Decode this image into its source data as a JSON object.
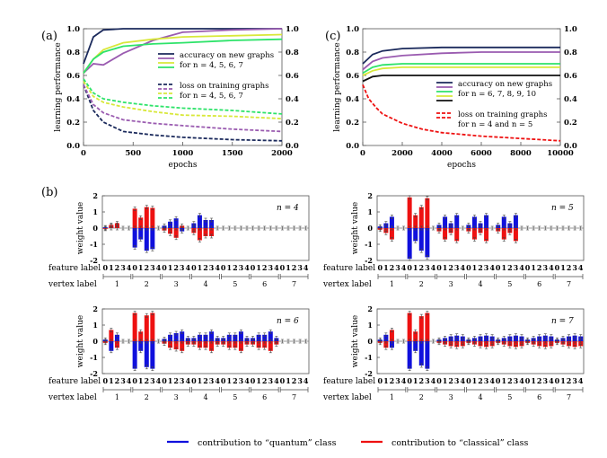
{
  "figure": {
    "panel_a_label": "(a)",
    "panel_b_label": "(b)",
    "panel_c_label": "(c)",
    "bottom_legend": {
      "quantum_label": "contribution to “quantum” class",
      "classical_label": "contribution to “classical” class",
      "quantum_color": "#1010dd",
      "classical_color": "#ee1111"
    }
  },
  "chart_data": [
    {
      "id": "a",
      "type": "line",
      "xlabel": "epochs",
      "ylabel": "learning performance",
      "xlim": [
        0,
        2000
      ],
      "ylim": [
        0,
        1.0
      ],
      "xticks": [
        "0",
        "500",
        "1000",
        "1500",
        "2000"
      ],
      "yticks": [
        "0.0",
        "0.2",
        "0.4",
        "0.6",
        "0.8",
        "1.0"
      ],
      "right_axis_ticks": [
        "0.0",
        "0.2",
        "0.4",
        "0.6",
        "0.8",
        "1.0"
      ],
      "grid": false,
      "legend": {
        "accuracy_lines": [
          "accuracy on new graphs",
          "for n = 4, 5, 6, 7"
        ],
        "loss_lines": [
          "loss on training graphs",
          "for n = 4, 5, 6, 7"
        ]
      },
      "colors": [
        "#1b2a5c",
        "#9a5bb0",
        "#d8e83a",
        "#2ee36a"
      ],
      "series": [
        {
          "kind": "accuracy",
          "x": [
            0,
            100,
            200,
            400,
            700,
            1000,
            1500,
            2000
          ],
          "y": [
            0.7,
            0.93,
            0.99,
            1.0,
            1.0,
            1.0,
            1.0,
            1.0
          ]
        },
        {
          "kind": "accuracy",
          "x": [
            0,
            100,
            200,
            400,
            700,
            1000,
            1500,
            2000
          ],
          "y": [
            0.62,
            0.7,
            0.69,
            0.79,
            0.9,
            0.97,
            0.99,
            1.0
          ]
        },
        {
          "kind": "accuracy",
          "x": [
            0,
            100,
            200,
            400,
            700,
            1000,
            1500,
            2000
          ],
          "y": [
            0.62,
            0.74,
            0.82,
            0.88,
            0.91,
            0.93,
            0.94,
            0.95
          ]
        },
        {
          "kind": "accuracy",
          "x": [
            0,
            100,
            200,
            400,
            700,
            1000,
            1500,
            2000
          ],
          "y": [
            0.62,
            0.74,
            0.8,
            0.85,
            0.87,
            0.88,
            0.9,
            0.91
          ]
        },
        {
          "kind": "loss",
          "x": [
            0,
            100,
            200,
            400,
            700,
            1000,
            1500,
            2000
          ],
          "y": [
            0.52,
            0.3,
            0.2,
            0.12,
            0.09,
            0.07,
            0.05,
            0.04
          ]
        },
        {
          "kind": "loss",
          "x": [
            0,
            100,
            200,
            400,
            700,
            1000,
            1500,
            2000
          ],
          "y": [
            0.52,
            0.35,
            0.28,
            0.22,
            0.19,
            0.17,
            0.14,
            0.12
          ]
        },
        {
          "kind": "loss",
          "x": [
            0,
            100,
            200,
            400,
            700,
            1000,
            1500,
            2000
          ],
          "y": [
            0.55,
            0.42,
            0.37,
            0.33,
            0.29,
            0.26,
            0.25,
            0.23
          ]
        },
        {
          "kind": "loss",
          "x": [
            0,
            100,
            200,
            400,
            700,
            1000,
            1500,
            2000
          ],
          "y": [
            0.57,
            0.45,
            0.4,
            0.37,
            0.34,
            0.32,
            0.3,
            0.27
          ]
        }
      ]
    },
    {
      "id": "c",
      "type": "line",
      "xlabel": "epochs",
      "ylabel": "learning performance",
      "xlim": [
        0,
        10000
      ],
      "ylim": [
        0,
        1.0
      ],
      "xticks": [
        "0",
        "2000",
        "4000",
        "6000",
        "8000",
        "10000"
      ],
      "yticks": [
        "0.0",
        "0.2",
        "0.4",
        "0.6",
        "0.8",
        "1.0"
      ],
      "right_axis_ticks": [
        "0.0",
        "0.2",
        "0.4",
        "0.6",
        "0.8",
        "1.0"
      ],
      "grid": false,
      "legend": {
        "accuracy_lines": [
          "accuracy on new graphs",
          "for n = 6, 7, 8, 9, 10"
        ],
        "loss_lines": [
          "loss on training graphs",
          "for n = 4 and n = 5"
        ]
      },
      "colors": [
        "#1b2a5c",
        "#9a5bb0",
        "#2ee36a",
        "#d8e83a",
        "#111111"
      ],
      "loss_color": "#ee1111",
      "series": [
        {
          "kind": "accuracy",
          "x": [
            0,
            500,
            1000,
            2000,
            4000,
            6000,
            8000,
            10000
          ],
          "y": [
            0.7,
            0.78,
            0.81,
            0.83,
            0.84,
            0.84,
            0.84,
            0.84
          ]
        },
        {
          "kind": "accuracy",
          "x": [
            0,
            500,
            1000,
            2000,
            4000,
            6000,
            8000,
            10000
          ],
          "y": [
            0.65,
            0.72,
            0.75,
            0.77,
            0.79,
            0.8,
            0.8,
            0.8
          ]
        },
        {
          "kind": "accuracy",
          "x": [
            0,
            500,
            1000,
            2000,
            4000,
            6000,
            8000,
            10000
          ],
          "y": [
            0.62,
            0.67,
            0.69,
            0.7,
            0.7,
            0.7,
            0.7,
            0.7
          ]
        },
        {
          "kind": "accuracy",
          "x": [
            0,
            500,
            1000,
            2000,
            4000,
            6000,
            8000,
            10000
          ],
          "y": [
            0.6,
            0.64,
            0.66,
            0.67,
            0.67,
            0.67,
            0.67,
            0.67
          ]
        },
        {
          "kind": "accuracy",
          "x": [
            0,
            500,
            1000,
            2000,
            4000,
            6000,
            8000,
            10000
          ],
          "y": [
            0.55,
            0.59,
            0.6,
            0.6,
            0.6,
            0.6,
            0.6,
            0.6
          ]
        },
        {
          "kind": "loss",
          "x": [
            0,
            300,
            700,
            1000,
            2000,
            3000,
            4000,
            6000,
            8000,
            10000
          ],
          "y": [
            0.52,
            0.4,
            0.32,
            0.27,
            0.19,
            0.14,
            0.11,
            0.08,
            0.06,
            0.04
          ]
        }
      ]
    },
    {
      "id": "b",
      "type": "bar",
      "ylabel": "weight value",
      "ylim": [
        -2,
        2
      ],
      "yticks": [
        "2",
        "1",
        "0",
        "-1",
        "-2"
      ],
      "feature_axis_label": "feature label",
      "vertex_axis_label": "vertex label",
      "feature_labels": [
        "0",
        "1",
        "2",
        "3",
        "4"
      ],
      "vertex_labels": [
        "1",
        "2",
        "3",
        "4",
        "5",
        "6",
        "7"
      ],
      "subplots": [
        {
          "n_label": "n = 4",
          "quantum": [
            [
              0.05,
              0.15,
              0.2,
              0,
              0
            ],
            [
              -1.2,
              -0.7,
              -1.4,
              -1.3,
              0
            ],
            [
              0.15,
              0.4,
              0.6,
              -0.2,
              0
            ],
            [
              0.3,
              0.8,
              0.5,
              0.5,
              0
            ],
            [
              0,
              0,
              0,
              0,
              0
            ],
            [
              0,
              0,
              0,
              0,
              0
            ],
            [
              0,
              0,
              0,
              0,
              0
            ]
          ],
          "classical": [
            [
              -0.05,
              0.2,
              0.3,
              0,
              0
            ],
            [
              1.2,
              0.65,
              1.3,
              1.25,
              0
            ],
            [
              -0.15,
              -0.35,
              -0.6,
              0.15,
              0
            ],
            [
              -0.3,
              -0.75,
              -0.5,
              -0.5,
              0
            ],
            [
              0,
              0,
              0,
              0,
              0
            ],
            [
              0,
              0,
              0,
              0,
              0
            ],
            [
              0,
              0,
              0,
              0,
              0
            ]
          ]
        },
        {
          "n_label": "n = 5",
          "quantum": [
            [
              0.1,
              0.3,
              0.7,
              0,
              0
            ],
            [
              -1.9,
              -0.8,
              -1.4,
              -1.8,
              0
            ],
            [
              0.2,
              0.7,
              0.3,
              0.8,
              0
            ],
            [
              0.2,
              0.7,
              0.3,
              0.8,
              0
            ],
            [
              0.2,
              0.7,
              0.3,
              0.8,
              0
            ],
            [
              0,
              0,
              0,
              0,
              0
            ],
            [
              0,
              0,
              0,
              0,
              0
            ]
          ],
          "classical": [
            [
              -0.1,
              -0.3,
              -0.7,
              0,
              0
            ],
            [
              1.9,
              0.8,
              1.3,
              1.85,
              0
            ],
            [
              -0.2,
              -0.7,
              -0.3,
              -0.8,
              0
            ],
            [
              -0.2,
              -0.7,
              -0.3,
              -0.8,
              0
            ],
            [
              -0.2,
              -0.7,
              -0.3,
              -0.8,
              0
            ],
            [
              0,
              0,
              0,
              0,
              0
            ],
            [
              0,
              0,
              0,
              0,
              0
            ]
          ]
        },
        {
          "n_label": "n = 6",
          "quantum": [
            [
              0.1,
              -0.6,
              0.4,
              0,
              0
            ],
            [
              -1.7,
              -0.6,
              -1.6,
              -1.7,
              0
            ],
            [
              0.15,
              0.4,
              0.5,
              0.6,
              0.2
            ],
            [
              0.2,
              0.4,
              0.4,
              0.6,
              0.2
            ],
            [
              0.2,
              0.4,
              0.4,
              0.6,
              0.2
            ],
            [
              0.2,
              0.4,
              0.4,
              0.6,
              0.2
            ],
            [
              0,
              0,
              0,
              0,
              0
            ]
          ],
          "classical": [
            [
              -0.1,
              0.7,
              -0.4,
              0,
              0
            ],
            [
              1.75,
              0.6,
              1.6,
              1.75,
              0
            ],
            [
              -0.15,
              -0.4,
              -0.5,
              -0.6,
              -0.2
            ],
            [
              -0.2,
              -0.4,
              -0.4,
              -0.6,
              -0.2
            ],
            [
              -0.2,
              -0.4,
              -0.4,
              -0.6,
              -0.2
            ],
            [
              -0.2,
              -0.4,
              -0.4,
              -0.6,
              -0.2
            ],
            [
              0,
              0,
              0,
              0,
              0
            ]
          ]
        },
        {
          "n_label": "n = 7",
          "quantum": [
            [
              0.1,
              0.4,
              -0.4,
              0,
              0
            ],
            [
              -1.7,
              -0.6,
              -1.5,
              -1.7,
              0
            ],
            [
              0.1,
              0.2,
              0.3,
              0.35,
              0.3
            ],
            [
              0.1,
              0.2,
              0.3,
              0.35,
              0.3
            ],
            [
              0.1,
              0.2,
              0.3,
              0.35,
              0.3
            ],
            [
              0.1,
              0.2,
              0.3,
              0.35,
              0.3
            ],
            [
              0.1,
              0.2,
              0.3,
              0.35,
              0.3
            ]
          ],
          "classical": [
            [
              -0.1,
              -0.4,
              0.7,
              0,
              0
            ],
            [
              1.75,
              0.6,
              1.55,
              1.75,
              0
            ],
            [
              -0.1,
              -0.2,
              -0.3,
              -0.35,
              -0.3
            ],
            [
              -0.1,
              -0.2,
              -0.3,
              -0.35,
              -0.3
            ],
            [
              -0.1,
              -0.2,
              -0.3,
              -0.35,
              -0.3
            ],
            [
              -0.1,
              -0.2,
              -0.3,
              -0.35,
              -0.3
            ],
            [
              -0.1,
              -0.2,
              -0.3,
              -0.35,
              -0.3
            ]
          ]
        }
      ]
    }
  ]
}
